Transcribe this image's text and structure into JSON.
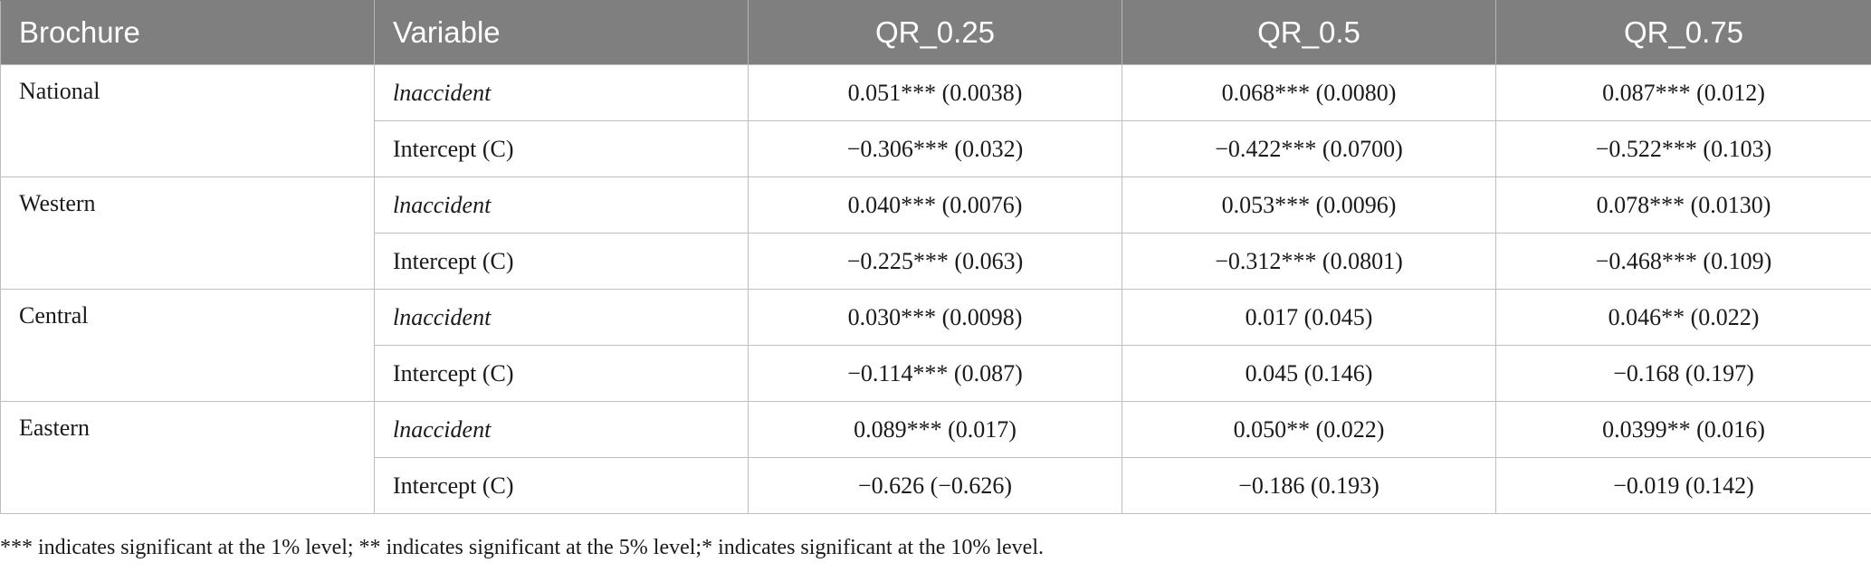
{
  "header": {
    "brochure": "Brochure",
    "variable": "Variable",
    "qr025": "QR_0.25",
    "qr05": "QR_0.5",
    "qr075": "QR_0.75"
  },
  "rows": [
    {
      "region": "National",
      "r1": {
        "var": "lnaccident",
        "q25": "0.051*** (0.0038)",
        "q50": "0.068*** (0.0080)",
        "q75": "0.087*** (0.012)"
      },
      "r2": {
        "var": "Intercept (C)",
        "q25": "−0.306*** (0.032)",
        "q50": "−0.422*** (0.0700)",
        "q75": "−0.522*** (0.103)"
      }
    },
    {
      "region": "Western",
      "r1": {
        "var": "lnaccident",
        "q25": "0.040*** (0.0076)",
        "q50": "0.053*** (0.0096)",
        "q75": "0.078*** (0.0130)"
      },
      "r2": {
        "var": "Intercept (C)",
        "q25": "−0.225*** (0.063)",
        "q50": "−0.312*** (0.0801)",
        "q75": "−0.468*** (0.109)"
      }
    },
    {
      "region": "Central",
      "r1": {
        "var": "lnaccident",
        "q25": "0.030*** (0.0098)",
        "q50": "0.017 (0.045)",
        "q75": "0.046** (0.022)"
      },
      "r2": {
        "var": "Intercept (C)",
        "q25": "−0.114*** (0.087)",
        "q50": "0.045 (0.146)",
        "q75": "−0.168 (0.197)"
      }
    },
    {
      "region": "Eastern",
      "r1": {
        "var": "lnaccident",
        "q25": "0.089*** (0.017)",
        "q50": "0.050** (0.022)",
        "q75": "0.0399** (0.016)"
      },
      "r2": {
        "var": "Intercept (C)",
        "q25": "−0.626 (−0.626)",
        "q50": "−0.186 (0.193)",
        "q75": "−0.019 (0.142)"
      }
    }
  ],
  "footnote": "*** indicates significant at the 1% level; ** indicates significant at the 5% level;* indicates significant at the 10% level."
}
